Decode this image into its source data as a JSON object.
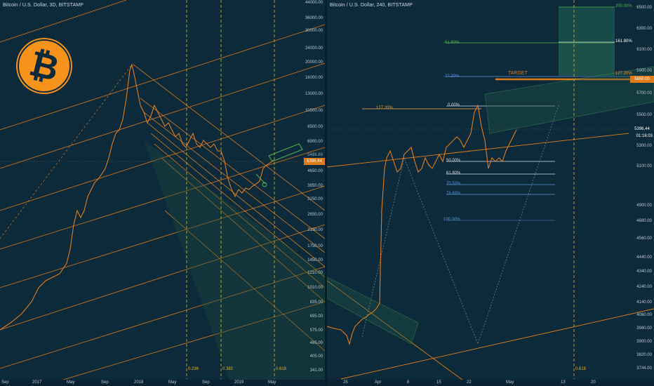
{
  "left_panel": {
    "title": "Bitcoin / U.S. Dollar, 3D, BITSTAMP",
    "price_badge": "5396.44",
    "price_label_dim": "5488.88",
    "y_ticks": [
      "44000.00",
      "36000.00",
      "30000.00",
      "24000.00",
      "20000.00",
      "16000.00",
      "13000.00",
      "10500.00",
      "8500.00",
      "6900.00",
      "4650.00",
      "3850.00",
      "3250.00",
      "2650.00",
      "2150.00",
      "1750.00",
      "1450.00",
      "1210.00",
      "1010.00",
      "835.00",
      "695.00",
      "575.00",
      "485.00",
      "405.00",
      "341.00"
    ],
    "x_ticks": [
      "Sep",
      "2017",
      "May",
      "Sep",
      "2018",
      "May",
      "Sep",
      "2019",
      "May"
    ],
    "fib_time_labels": [
      "0.236",
      "0.382",
      "0.618"
    ],
    "logo_glyph": "₿"
  },
  "right_panel": {
    "title": "Bitcoin / U.S. Dollar, 240, BITSTAMP",
    "price_badge": "5396.44",
    "countdown": "01:16:03",
    "target_badge": "5850.00",
    "target_label": "TARGET",
    "y_ticks": [
      "6500.00",
      "6300.00",
      "6100.00",
      "5900.00",
      "5700.00",
      "5500.00",
      "5300.00",
      "5100.00",
      "4900.00",
      "4680.00",
      "4560.00",
      "4440.00",
      "4340.00",
      "4240.00",
      "4140.00",
      "4060.00",
      "3980.00",
      "3900.00",
      "3820.00",
      "3744.00"
    ],
    "x_ticks": [
      "25",
      "Apr",
      "8",
      "15",
      "22",
      "May",
      "13",
      "20"
    ],
    "fib_levels": [
      {
        "label": "0.00%",
        "color": "#cfd8df"
      },
      {
        "label": "50.00%",
        "color": "#cfd8df"
      },
      {
        "label": "61.80%",
        "color": "#cfd8df"
      },
      {
        "label": "70.50%",
        "color": "#5b8fd6"
      },
      {
        "label": "78.60%",
        "color": "#5b8fd6"
      },
      {
        "label": "100.00%",
        "color": "#5b8fd6"
      }
    ],
    "ext_levels": [
      {
        "label": "-61.80%",
        "color": "#4caf50"
      },
      {
        "label": "-27.20%",
        "color": "#5b8fd6"
      },
      {
        "label": "127.20%",
        "color": "#f0a040"
      },
      {
        "label": "127.20%",
        "color": "#f0a040"
      },
      {
        "label": "161.80%",
        "color": "#ffffff"
      },
      {
        "label": "200.00%",
        "color": "#4caf50"
      }
    ],
    "fib_time_label": "0.618"
  },
  "colors": {
    "background": "#0d2a3b",
    "orange": "#e07b1a",
    "green": "#4caf50",
    "blue": "#5b8fd6"
  }
}
